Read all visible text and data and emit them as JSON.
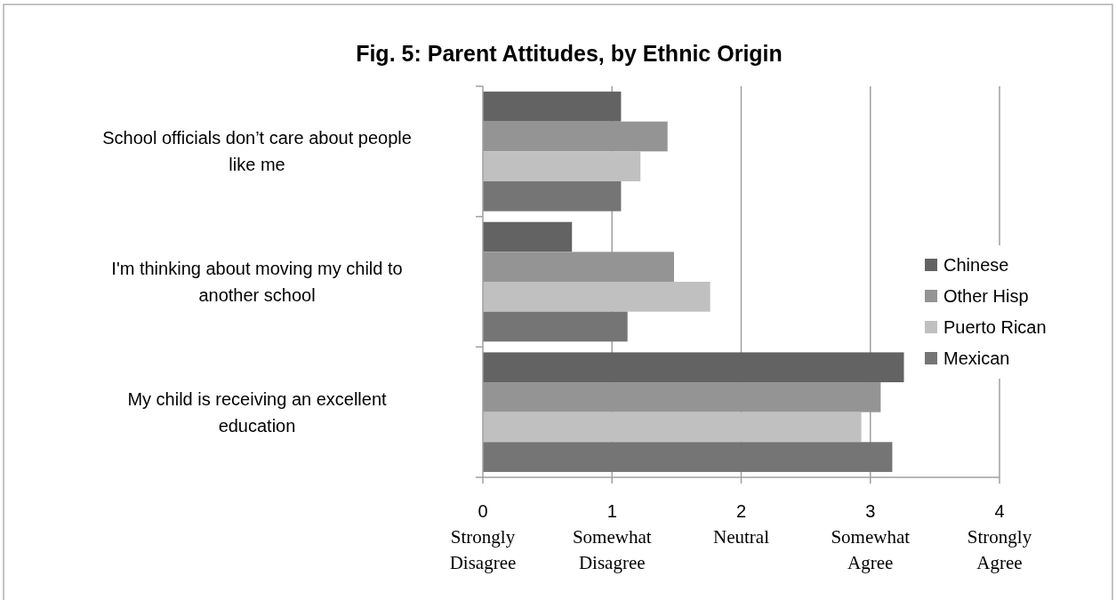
{
  "chart_data": {
    "type": "bar",
    "orientation": "horizontal",
    "title": "Fig. 5: Parent Attitudes, by Ethnic Origin",
    "categories": [
      "School officials don’t care about people like me",
      "I'm thinking about moving my child to another school",
      "My child is receiving an excellent education"
    ],
    "series": [
      {
        "name": "Chinese",
        "color": "#636363",
        "values": [
          1.07,
          0.69,
          3.26
        ]
      },
      {
        "name": "Other Hisp",
        "color": "#949494",
        "values": [
          1.43,
          1.48,
          3.08
        ]
      },
      {
        "name": "Puerto Rican",
        "color": "#c0c0c0",
        "values": [
          1.22,
          1.76,
          2.93
        ]
      },
      {
        "name": "Mexican",
        "color": "#757575",
        "values": [
          1.07,
          1.12,
          3.17
        ]
      }
    ],
    "xlim": [
      0,
      4
    ],
    "xticks": [
      {
        "value": 0,
        "label": "0\nStrongly\nDisagree"
      },
      {
        "value": 1,
        "label": "1\nSomewhat\nDisagree"
      },
      {
        "value": 2,
        "label": "2\nNeutral"
      },
      {
        "value": 3,
        "label": "3\nSomewhat\nAgree"
      },
      {
        "value": 4,
        "label": "4\nStrongly\nAgree"
      }
    ],
    "grid": "x",
    "legend": "right"
  }
}
